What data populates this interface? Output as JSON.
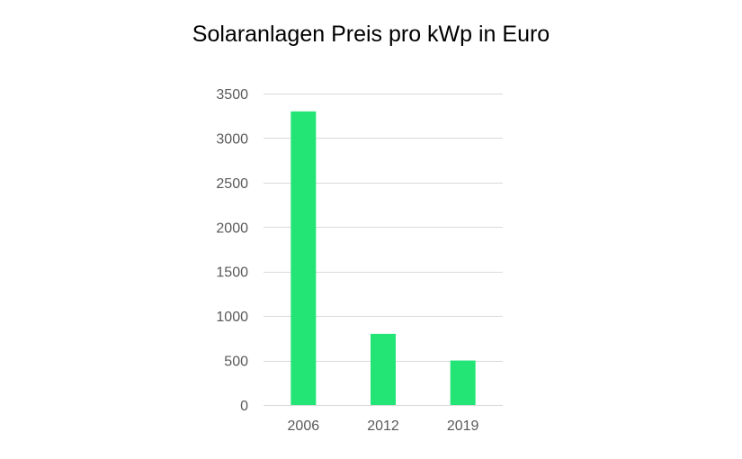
{
  "chart_data": {
    "type": "bar",
    "title": "Solaranlagen Preis pro kWp in Euro",
    "categories": [
      "2006",
      "2012",
      "2019"
    ],
    "values": [
      3300,
      800,
      500
    ],
    "xlabel": "",
    "ylabel": "",
    "ylim": [
      0,
      3500
    ],
    "yticks": [
      0,
      500,
      1000,
      1500,
      2000,
      2500,
      3000,
      3500
    ],
    "grid": true,
    "legend": "none",
    "bar_color": "#23e575",
    "grid_color": "#d9d9d9",
    "tick_label_color": "#595959"
  }
}
